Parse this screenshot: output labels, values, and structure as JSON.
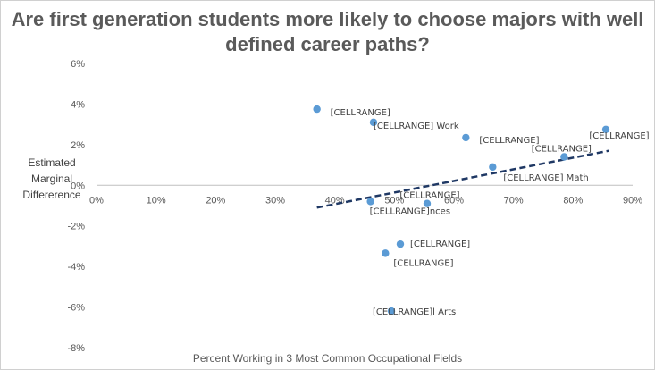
{
  "chart_data": {
    "type": "scatter",
    "title": "Are first generation students more likely to choose majors with well defined career paths?",
    "xlabel": "Percent Working in 3 Most Common Occupational Fields",
    "ylabel_lines": [
      "Estimated",
      "Marginal",
      "Differerence"
    ],
    "xlim": [
      0,
      0.9
    ],
    "ylim": [
      -0.08,
      0.06
    ],
    "x_ticks": [
      0,
      0.1,
      0.2,
      0.3,
      0.4,
      0.5,
      0.6,
      0.7,
      0.8,
      0.9
    ],
    "x_tick_labels": [
      "0%",
      "10%",
      "20%",
      "30%",
      "40%",
      "50%",
      "60%",
      "70%",
      "80%",
      "90%"
    ],
    "y_ticks": [
      0.06,
      0.04,
      0.02,
      0,
      -0.02,
      -0.04,
      -0.06,
      -0.08
    ],
    "y_tick_labels": [
      "6%",
      "4%",
      "2%",
      "0%",
      "-2%",
      "-4%",
      "-6%",
      "-8%"
    ],
    "grid": false,
    "marker_color": "#5b9bd5",
    "trendline_color": "#1f3864",
    "points": [
      {
        "x": 0.37,
        "y": 0.0375,
        "label": "[CELLRANGE]"
      },
      {
        "x": 0.465,
        "y": 0.031,
        "label": "[CELLRANGE] Work"
      },
      {
        "x": 0.62,
        "y": 0.0235,
        "label": "[CELLRANGE]"
      },
      {
        "x": 0.855,
        "y": 0.0275,
        "label": "[CELLRANGE]"
      },
      {
        "x": 0.785,
        "y": 0.014,
        "label": "[CELLRANGE]"
      },
      {
        "x": 0.665,
        "y": 0.009,
        "label": "[CELLRANGE] Math"
      },
      {
        "x": 0.46,
        "y": -0.008,
        "label": "[CELLRANGE]nces"
      },
      {
        "x": 0.555,
        "y": -0.009,
        "label": "[CELLRANGE]"
      },
      {
        "x": 0.51,
        "y": -0.029,
        "label": "[CELLRANGE]"
      },
      {
        "x": 0.485,
        "y": -0.0335,
        "label": "[CELLRANGE]"
      },
      {
        "x": 0.495,
        "y": -0.062,
        "label": "[CELLRANGE]l Arts"
      }
    ],
    "trendline": {
      "type": "linear",
      "x": [
        0.37,
        0.86
      ],
      "y": [
        -0.011,
        0.017
      ]
    }
  }
}
